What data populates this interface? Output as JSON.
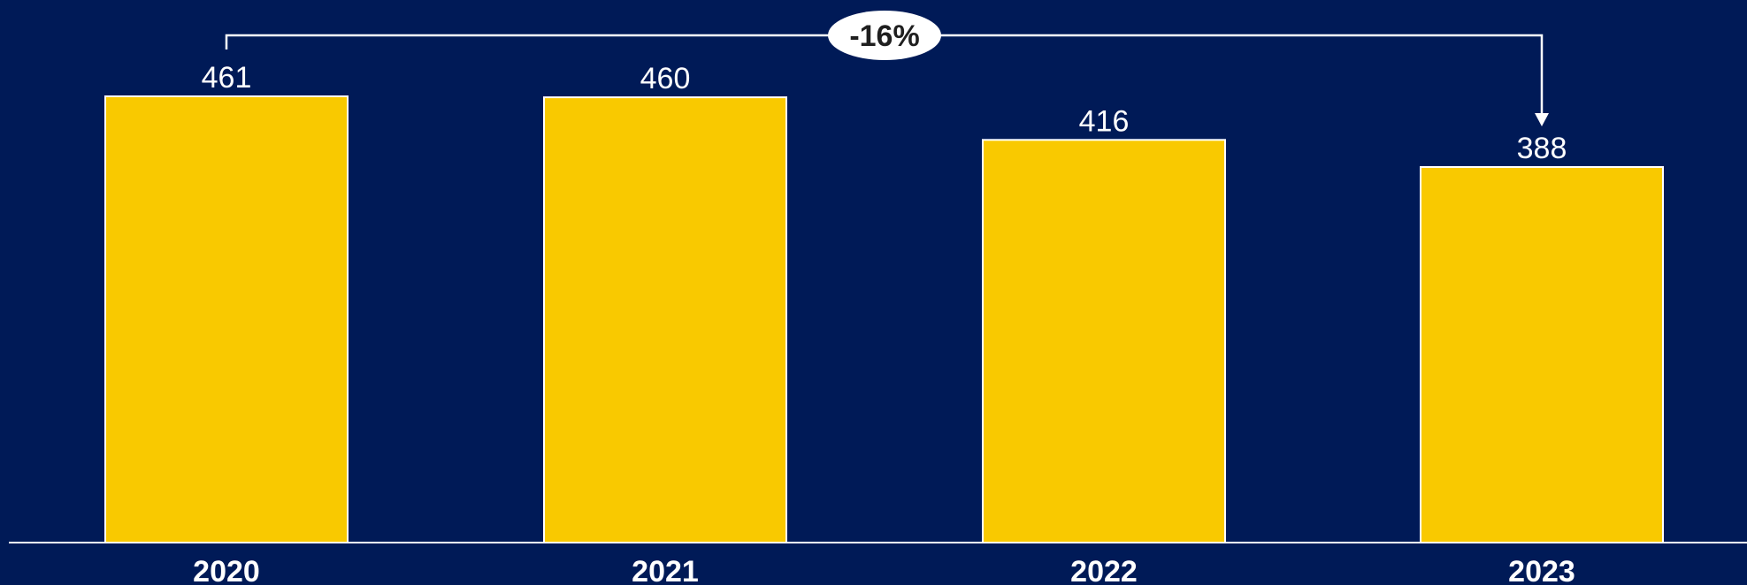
{
  "chart_data": {
    "type": "bar",
    "categories": [
      "2020",
      "2021",
      "2022",
      "2023"
    ],
    "values": [
      461,
      460,
      416,
      388
    ],
    "data_labels": [
      "461",
      "460",
      "416",
      "388"
    ],
    "title": "",
    "xlabel": "",
    "ylabel": "",
    "ylim": [
      0,
      461
    ],
    "grid": false,
    "legend": "none",
    "annotation": {
      "from": "2020",
      "to": "2023",
      "label": "-16%"
    },
    "colors": {
      "background": "#001a57",
      "bar": "#f9c900",
      "bar_outline": "#ffffff",
      "text": "#ffffff",
      "badge_fill": "#ffffff",
      "badge_text": "#1f1f1f"
    }
  }
}
